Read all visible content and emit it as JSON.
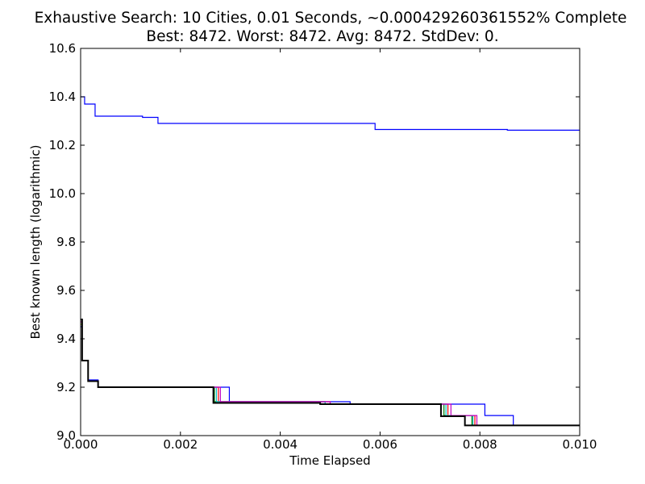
{
  "chart_data": {
    "type": "line",
    "title_line1": "Exhaustive Search: 10 Cities, 0.01 Seconds, ~0.000429260361552% Complete",
    "title_line2": "Best: 8472. Worst: 8472. Avg: 8472. StdDev: 0.",
    "xlabel": "Time Elapsed",
    "ylabel": "Best known length (logarithmic)",
    "xlim": [
      0.0,
      0.01
    ],
    "ylim": [
      9.0,
      10.6
    ],
    "xticks": [
      "0.000",
      "0.002",
      "0.004",
      "0.006",
      "0.008",
      "0.010"
    ],
    "yticks": [
      "9.0",
      "9.2",
      "9.4",
      "9.6",
      "9.8",
      "10.0",
      "10.2",
      "10.4",
      "10.6"
    ],
    "grid": false,
    "series": [
      {
        "color": "#0000ff",
        "width": 1.2,
        "points": [
          [
            0.0,
            10.4
          ],
          [
            8e-05,
            10.4
          ],
          [
            8e-05,
            10.37
          ],
          [
            0.00029,
            10.37
          ],
          [
            0.00029,
            10.32
          ],
          [
            0.00124,
            10.32
          ],
          [
            0.00124,
            10.315
          ],
          [
            0.00155,
            10.315
          ],
          [
            0.00155,
            10.29
          ],
          [
            0.0059,
            10.29
          ],
          [
            0.0059,
            10.265
          ],
          [
            0.00855,
            10.265
          ],
          [
            0.00855,
            10.262
          ],
          [
            0.01,
            10.262
          ]
        ]
      },
      {
        "color": "#0000ff",
        "width": 1.2,
        "points": [
          [
            0.0,
            9.45
          ],
          [
            3e-05,
            9.45
          ],
          [
            3e-05,
            9.31
          ],
          [
            0.00015,
            9.31
          ],
          [
            0.00015,
            9.23
          ],
          [
            0.00035,
            9.23
          ],
          [
            0.00035,
            9.2
          ],
          [
            0.00298,
            9.2
          ],
          [
            0.00298,
            9.14
          ],
          [
            0.0054,
            9.14
          ],
          [
            0.0054,
            9.13
          ],
          [
            0.0081,
            9.13
          ],
          [
            0.0081,
            9.083
          ],
          [
            0.00867,
            9.083
          ],
          [
            0.00867,
            9.042
          ],
          [
            0.01,
            9.042
          ]
        ]
      },
      {
        "color": "#007f00",
        "width": 1.2,
        "points": [
          [
            0.0,
            9.48
          ],
          [
            3e-05,
            9.48
          ],
          [
            3e-05,
            9.31
          ],
          [
            0.00015,
            9.31
          ],
          [
            0.00015,
            9.225
          ],
          [
            0.00035,
            9.225
          ],
          [
            0.00035,
            9.2
          ],
          [
            0.00268,
            9.2
          ],
          [
            0.00268,
            9.14
          ],
          [
            0.0049,
            9.14
          ],
          [
            0.0049,
            9.13
          ],
          [
            0.00728,
            9.13
          ],
          [
            0.00728,
            9.083
          ],
          [
            0.00784,
            9.083
          ],
          [
            0.00784,
            9.042
          ],
          [
            0.01,
            9.042
          ]
        ]
      },
      {
        "color": "#ff0000",
        "width": 1.2,
        "points": [
          [
            0.0,
            9.47
          ],
          [
            3e-05,
            9.47
          ],
          [
            3e-05,
            9.31
          ],
          [
            0.00015,
            9.31
          ],
          [
            0.00015,
            9.225
          ],
          [
            0.00035,
            9.225
          ],
          [
            0.00035,
            9.2
          ],
          [
            0.00276,
            9.2
          ],
          [
            0.00276,
            9.14
          ],
          [
            0.005,
            9.14
          ],
          [
            0.005,
            9.13
          ],
          [
            0.00736,
            9.13
          ],
          [
            0.00736,
            9.083
          ],
          [
            0.0079,
            9.083
          ],
          [
            0.0079,
            9.042
          ],
          [
            0.01,
            9.042
          ]
        ]
      },
      {
        "color": "#00bfbf",
        "width": 1.2,
        "points": [
          [
            0.0,
            9.46
          ],
          [
            3e-05,
            9.46
          ],
          [
            3e-05,
            9.31
          ],
          [
            0.00015,
            9.31
          ],
          [
            0.00015,
            9.225
          ],
          [
            0.00035,
            9.225
          ],
          [
            0.00035,
            9.2
          ],
          [
            0.00272,
            9.2
          ],
          [
            0.00272,
            9.14
          ],
          [
            0.0049,
            9.14
          ],
          [
            0.0049,
            9.13
          ],
          [
            0.00732,
            9.13
          ],
          [
            0.00732,
            9.083
          ],
          [
            0.00786,
            9.083
          ],
          [
            0.00786,
            9.042
          ],
          [
            0.01,
            9.042
          ]
        ]
      },
      {
        "color": "#bf00bf",
        "width": 1.2,
        "points": [
          [
            0.0,
            9.47
          ],
          [
            3e-05,
            9.47
          ],
          [
            3e-05,
            9.31
          ],
          [
            0.00015,
            9.31
          ],
          [
            0.00015,
            9.225
          ],
          [
            0.00035,
            9.225
          ],
          [
            0.00035,
            9.2
          ],
          [
            0.0028,
            9.2
          ],
          [
            0.0028,
            9.14
          ],
          [
            0.005,
            9.14
          ],
          [
            0.005,
            9.13
          ],
          [
            0.00742,
            9.13
          ],
          [
            0.00742,
            9.083
          ],
          [
            0.00794,
            9.083
          ],
          [
            0.00794,
            9.042
          ],
          [
            0.01,
            9.042
          ]
        ]
      },
      {
        "color": "#bfbf00",
        "width": 1.2,
        "points": [
          [
            0.0,
            9.46
          ],
          [
            3e-05,
            9.46
          ],
          [
            3e-05,
            9.31
          ],
          [
            0.00015,
            9.31
          ],
          [
            0.00015,
            9.225
          ],
          [
            0.00035,
            9.225
          ],
          [
            0.00035,
            9.2
          ],
          [
            0.00266,
            9.2
          ],
          [
            0.00266,
            9.135
          ],
          [
            0.0048,
            9.135
          ],
          [
            0.0048,
            9.13
          ],
          [
            0.00722,
            9.13
          ],
          [
            0.00722,
            9.08
          ],
          [
            0.0077,
            9.08
          ],
          [
            0.0077,
            9.042
          ],
          [
            0.01,
            9.042
          ]
        ]
      },
      {
        "color": "#000000",
        "width": 2.0,
        "points": [
          [
            0.0,
            9.48
          ],
          [
            3e-05,
            9.48
          ],
          [
            3e-05,
            9.31
          ],
          [
            0.00015,
            9.31
          ],
          [
            0.00015,
            9.225
          ],
          [
            0.00035,
            9.225
          ],
          [
            0.00035,
            9.2
          ],
          [
            0.00266,
            9.2
          ],
          [
            0.00266,
            9.135
          ],
          [
            0.0048,
            9.135
          ],
          [
            0.0048,
            9.13
          ],
          [
            0.00722,
            9.13
          ],
          [
            0.00722,
            9.08
          ],
          [
            0.0077,
            9.08
          ],
          [
            0.0077,
            9.042
          ],
          [
            0.01,
            9.042
          ]
        ]
      }
    ]
  }
}
